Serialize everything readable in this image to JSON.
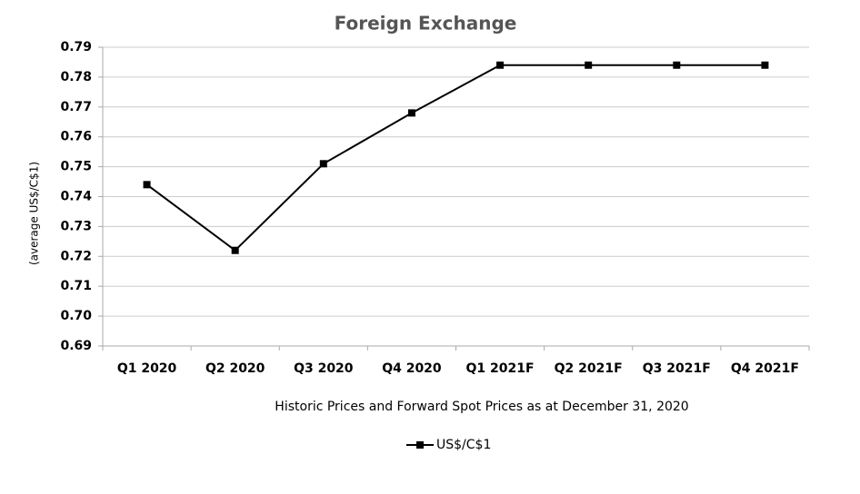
{
  "chart_data": {
    "type": "line",
    "title": "Foreign Exchange",
    "y_label": "(average US$/C$1)",
    "x_label": "Historic Prices and Forward Spot Prices as at December 31, 2020",
    "categories": [
      "Q1 2020",
      "Q2 2020",
      "Q3 2020",
      "Q4 2020",
      "Q1 2021F",
      "Q2 2021F",
      "Q3 2021F",
      "Q4 2021F"
    ],
    "series": [
      {
        "name": "US$/C$1",
        "color": "#000000",
        "values": [
          0.744,
          0.722,
          0.751,
          0.768,
          0.784,
          0.784,
          0.784,
          0.784
        ]
      }
    ],
    "ylim": [
      0.69,
      0.79
    ],
    "yticks": [
      0.69,
      {
        "value": 0.7,
        "label": "0.70"
      },
      0.71,
      0.72,
      0.73,
      0.74,
      0.75,
      0.76,
      0.77,
      0.78,
      0.79
    ],
    "grid": true,
    "legend": "bottom"
  }
}
